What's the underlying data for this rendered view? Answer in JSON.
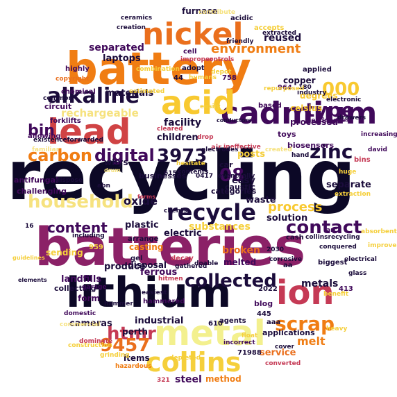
{
  "words": [
    {
      "text": "recycling",
      "color": "#0c0826"
    },
    {
      "text": "batteries",
      "color": "#8b2167"
    },
    {
      "text": "battery",
      "color": "#f07d13"
    },
    {
      "text": "lithium",
      "color": "#0c0826"
    },
    {
      "text": "lead",
      "color": "#d04344"
    },
    {
      "text": "nickel",
      "color": "#ea6f1d"
    },
    {
      "text": "cadmium",
      "color": "#40095a"
    },
    {
      "text": "acid",
      "color": "#f8c930"
    },
    {
      "text": "metal",
      "color": "#f3f08e"
    },
    {
      "text": "ion",
      "color": "#c53a55"
    },
    {
      "text": "alkaline",
      "color": "#1b0c3b"
    },
    {
      "text": "collins",
      "color": "#f5cf3b"
    },
    {
      "text": "recycle",
      "color": "#1b0c3b"
    },
    {
      "text": "household",
      "color": "#f6e27f"
    },
    {
      "text": "contact",
      "color": "#40095a"
    },
    {
      "text": "zinc",
      "color": "#1b0c3b"
    },
    {
      "text": "type",
      "color": "#40095a"
    },
    {
      "text": "collected",
      "color": "#1b0c3b"
    },
    {
      "text": "scrap",
      "color": "#f07d13"
    },
    {
      "text": "carbon",
      "color": "#f07d13"
    },
    {
      "text": "digital",
      "color": "#40095a"
    },
    {
      "text": "3973",
      "color": "#1b0c3b"
    },
    {
      "text": "08",
      "color": "#40095a"
    },
    {
      "text": "bin",
      "color": "#40095a"
    },
    {
      "text": "htmr",
      "color": "#c53a55"
    },
    {
      "text": "9457",
      "color": "#ea6f1d"
    },
    {
      "text": "environment",
      "color": "#f07d13"
    },
    {
      "text": "content",
      "color": "#40095a"
    },
    {
      "text": "process",
      "color": "#f8c930"
    },
    {
      "text": "000",
      "color": "#f8c930"
    },
    {
      "text": "separated",
      "color": "#40095a"
    },
    {
      "text": "laptops",
      "color": "#1b0c3b"
    },
    {
      "text": "furnace",
      "color": "#1b0c3b"
    },
    {
      "text": "reused",
      "color": "#1b0c3b"
    },
    {
      "text": "rechargeable",
      "color": "#f6e27f"
    },
    {
      "text": "facility",
      "color": "#1b0c3b"
    },
    {
      "text": "children",
      "color": "#1b0c3b"
    },
    {
      "text": "materials",
      "color": "#1b0c3b"
    },
    {
      "text": "oxide",
      "color": "#1b0c3b"
    },
    {
      "text": "substances",
      "color": "#f5cf3b"
    },
    {
      "text": "plastic",
      "color": "#1b0c3b"
    },
    {
      "text": "electric",
      "color": "#1b0c3b"
    },
    {
      "text": "broken",
      "color": "#ea6f1d"
    },
    {
      "text": "metals",
      "color": "#1b0c3b"
    },
    {
      "text": "melt",
      "color": "#f07d13"
    },
    {
      "text": "melted",
      "color": "#40095a"
    },
    {
      "text": "ferrous",
      "color": "#40095a"
    },
    {
      "text": "produce",
      "color": "#1b0c3b"
    },
    {
      "text": "industrial",
      "color": "#1b0c3b"
    },
    {
      "text": "cameras",
      "color": "#1b0c3b"
    },
    {
      "text": "perth",
      "color": "#1b0c3b"
    },
    {
      "text": "items",
      "color": "#1b0c3b"
    },
    {
      "text": "steel",
      "color": "#40095a"
    },
    {
      "text": "method",
      "color": "#f07d13"
    },
    {
      "text": "service",
      "color": "#ea6f1d"
    },
    {
      "text": "landfills",
      "color": "#40095a"
    },
    {
      "text": "collecting",
      "color": "#1b0c3b"
    },
    {
      "text": "form",
      "color": "#40095a"
    },
    {
      "text": "solution",
      "color": "#1b0c3b"
    },
    {
      "text": "waste",
      "color": "#1b0c3b"
    },
    {
      "text": "separate",
      "color": "#1b0c3b"
    },
    {
      "text": "easy",
      "color": "#1b0c3b"
    },
    {
      "text": "posts",
      "color": "#f5cf3b"
    },
    {
      "text": "copper",
      "color": "#1b0c3b"
    },
    {
      "text": "celsius",
      "color": "#f8c930"
    },
    {
      "text": "degrees",
      "color": "#f8c930"
    },
    {
      "text": "processed",
      "color": "#40095a"
    },
    {
      "text": "toys",
      "color": "#40095a"
    },
    {
      "text": "biosensors",
      "color": "#40095a"
    },
    {
      "text": "whys",
      "color": "#1b0c3b"
    },
    {
      "text": "categories",
      "color": "#1b0c3b"
    },
    {
      "text": "caustic",
      "color": "#1b0c3b"
    },
    {
      "text": "businesses",
      "color": "#1b0c3b"
    },
    {
      "text": "sending",
      "color": "#f5cf3b"
    },
    {
      "text": "circuit",
      "color": "#40095a"
    },
    {
      "text": "allowing",
      "color": "#40095a"
    },
    {
      "text": "antifungal",
      "color": "#40095a"
    },
    {
      "text": "challenging",
      "color": "#40095a"
    },
    {
      "text": "chemical",
      "color": "#40095a"
    },
    {
      "text": "highly",
      "color": "#40095a"
    },
    {
      "text": "copyright",
      "color": "#ea6f1d"
    },
    {
      "text": "common",
      "color": "#1b0c3b"
    },
    {
      "text": "existenceforwarded",
      "color": "#1b0c3b"
    },
    {
      "text": "familiar",
      "color": "#f6e27f"
    },
    {
      "text": "forklifts",
      "color": "#40095a"
    },
    {
      "text": "ceramics",
      "color": "#1b0c3b"
    },
    {
      "text": "creation",
      "color": "#1b0c3b"
    },
    {
      "text": "acidic",
      "color": "#1b0c3b"
    },
    {
      "text": "accepts",
      "color": "#f5cf3b"
    },
    {
      "text": "extracted",
      "color": "#1b0c3b"
    },
    {
      "text": "friendly",
      "color": "#1b0c3b"
    },
    {
      "text": "cell",
      "color": "#40095a"
    },
    {
      "text": "improper",
      "color": "#c53a55"
    },
    {
      "text": "controls",
      "color": "#c53a55"
    },
    {
      "text": "contribute",
      "color": "#f6e27f"
    },
    {
      "text": "adopt",
      "color": "#1b0c3b"
    },
    {
      "text": "humans",
      "color": "#f5cf3b"
    },
    {
      "text": "depot",
      "color": "#f5cf3b"
    },
    {
      "text": "44",
      "color": "#1b0c3b"
    },
    {
      "text": "758",
      "color": "#40095a"
    },
    {
      "text": "964",
      "color": "#40095a"
    },
    {
      "text": "180",
      "color": "#1b0c3b"
    },
    {
      "text": "applied",
      "color": "#1b0c3b"
    },
    {
      "text": "industry",
      "color": "#1b0c3b"
    },
    {
      "text": "electronic",
      "color": "#1b0c3b"
    },
    {
      "text": "headphones",
      "color": "#40095a"
    },
    {
      "text": "drawers",
      "color": "#1b0c3b"
    },
    {
      "text": "increasing",
      "color": "#40095a"
    },
    {
      "text": "david",
      "color": "#40095a"
    },
    {
      "text": "bins",
      "color": "#c53a55"
    },
    {
      "text": "hand",
      "color": "#1b0c3b"
    },
    {
      "text": "created",
      "color": "#f6e27f"
    },
    {
      "text": "ineffective",
      "color": "#c53a55"
    },
    {
      "text": "air",
      "color": "#c53a55"
    },
    {
      "text": "cleared",
      "color": "#c53a55"
    },
    {
      "text": "conductors",
      "color": "#1b0c3b"
    },
    {
      "text": "easily",
      "color": "#f5cf3b"
    },
    {
      "text": "estimated",
      "color": "#f5cf3b"
    },
    {
      "text": "based",
      "color": "#40095a"
    },
    {
      "text": "repurposed",
      "color": "#f5cf3b"
    },
    {
      "text": "car",
      "color": "#1b0c3b"
    },
    {
      "text": "0417",
      "color": "#1b0c3b"
    },
    {
      "text": "eventually",
      "color": "#1b0c3b"
    },
    {
      "text": "abn",
      "color": "#1b0c3b"
    },
    {
      "text": "dispose",
      "color": "#1b0c3b"
    },
    {
      "text": "extraction",
      "color": "#f5cf3b"
    },
    {
      "text": "huge",
      "color": "#f5cf3b"
    },
    {
      "text": "arc",
      "color": "#40095a"
    },
    {
      "text": "cash",
      "color": "#1b0c3b"
    },
    {
      "text": "collinsrecycling",
      "color": "#1b0c3b"
    },
    {
      "text": "conquered",
      "color": "#1b0c3b"
    },
    {
      "text": "absorbent",
      "color": "#f5cf3b"
    },
    {
      "text": "improvements",
      "color": "#f5cf3b"
    },
    {
      "text": "electrical",
      "color": "#1b0c3b"
    },
    {
      "text": "biggest",
      "color": "#1b0c3b"
    },
    {
      "text": "2030",
      "color": "#1b0c3b"
    },
    {
      "text": "corrosive",
      "color": "#1b0c3b"
    },
    {
      "text": "aa",
      "color": "#1b0c3b"
    },
    {
      "text": "glass",
      "color": "#1b0c3b"
    },
    {
      "text": "413",
      "color": "#40095a"
    },
    {
      "text": "2022",
      "color": "#1b0c3b"
    },
    {
      "text": "blog",
      "color": "#40095a"
    },
    {
      "text": "445",
      "color": "#1b0c3b"
    },
    {
      "text": "aaa",
      "color": "#1b0c3b"
    },
    {
      "text": "applications",
      "color": "#1b0c3b"
    },
    {
      "text": "agents",
      "color": "#1b0c3b"
    },
    {
      "text": "610",
      "color": "#1b0c3b"
    },
    {
      "text": "float",
      "color": "#f5cf3b"
    },
    {
      "text": "benefit",
      "color": "#f5cf3b"
    },
    {
      "text": "heavy",
      "color": "#f5cf3b"
    },
    {
      "text": "cover",
      "color": "#1b0c3b"
    },
    {
      "text": "converted",
      "color": "#c53a55"
    },
    {
      "text": "71988",
      "color": "#1b0c3b"
    },
    {
      "text": "incorrect",
      "color": "#40095a"
    },
    {
      "text": "depleted",
      "color": "#f5cf3b"
    },
    {
      "text": "321",
      "color": "#c53a55"
    },
    {
      "text": "hazardous",
      "color": "#f07d13"
    },
    {
      "text": "dominate",
      "color": "#c53a55"
    },
    {
      "text": "grinding",
      "color": "#f5cf3b"
    },
    {
      "text": "construction",
      "color": "#f5cf3b"
    },
    {
      "text": "commercial",
      "color": "#f6e27f"
    },
    {
      "text": "domestic",
      "color": "#40095a"
    },
    {
      "text": "garage",
      "color": "#40095a"
    },
    {
      "text": "hammer",
      "color": "#1b0c3b"
    },
    {
      "text": "hammered",
      "color": "#40095a"
    },
    {
      "text": "easiest",
      "color": "#1b0c3b"
    },
    {
      "text": "hitmen",
      "color": "#c53a55"
    },
    {
      "text": "doable",
      "color": "#1b0c3b"
    },
    {
      "text": "gathered",
      "color": "#1b0c3b"
    },
    {
      "text": "decay",
      "color": "#c53a55"
    },
    {
      "text": "gel",
      "color": "#1b0c3b"
    },
    {
      "text": "disposal",
      "color": "#1b0c3b"
    },
    {
      "text": "casting",
      "color": "#f07d13"
    },
    {
      "text": "arrange",
      "color": "#1b0c3b"
    },
    {
      "text": "959",
      "color": "#f5cf3b"
    },
    {
      "text": "including",
      "color": "#1b0c3b"
    },
    {
      "text": "16",
      "color": "#1b0c3b"
    },
    {
      "text": "guidelines",
      "color": "#f5cf3b"
    },
    {
      "text": "elements",
      "color": "#1b0c3b"
    },
    {
      "text": "electrodes",
      "color": "#1b0c3b"
    },
    {
      "text": "6155",
      "color": "#1b0c3b"
    },
    {
      "text": "clients",
      "color": "#1b0c3b"
    },
    {
      "text": "contents",
      "color": "#1b0c3b"
    },
    {
      "text": "hesitate",
      "color": "#f5cf3b"
    },
    {
      "text": "combination",
      "color": "#f5cf3b"
    },
    {
      "text": "drop",
      "color": "#c53a55"
    },
    {
      "text": "forms",
      "color": "#c53a55"
    },
    {
      "text": "drum",
      "color": "#f6e27f"
    },
    {
      "text": "accompanied",
      "color": "#f6e27f"
    }
  ]
}
